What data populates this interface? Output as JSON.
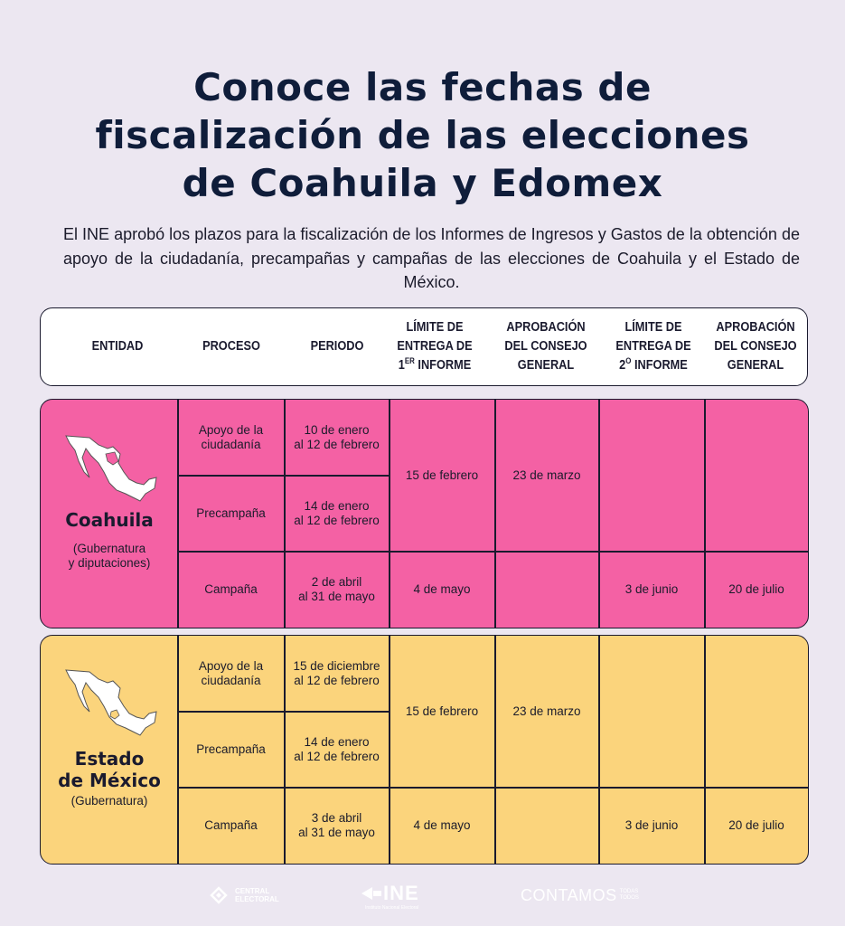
{
  "title": {
    "line1": "Conoce las fechas de",
    "line2": "fiscalización de las elecciones",
    "line3": "de Coahuila y Edomex"
  },
  "intro": "El INE aprobó los plazos para la fiscalización de los Informes de Ingresos y Gastos de la obtención de apoyo de la ciudadanía, precampañas y campañas de las elecciones de Coahuila y el Estado de México.",
  "headers": {
    "entidad": "ENTIDAD",
    "proceso": "PROCESO",
    "periodo": "PERIODO",
    "limite1_a": "LÍMITE DE",
    "limite1_b": "ENTREGA DE",
    "limite1_c_num": "1",
    "limite1_c_sup": "ER",
    "limite1_c_rest": " INFORME",
    "aprob1_a": "APROBACIÓN",
    "aprob1_b": "DEL CONSEJO",
    "aprob1_c": "GENERAL",
    "limite2_a": "LÍMITE DE",
    "limite2_b": "ENTREGA DE",
    "limite2_c_num": "2",
    "limite2_c_sup": "O",
    "limite2_c_rest": " INFORME",
    "aprob2_a": "APROBACIÓN",
    "aprob2_b": "DEL CONSEJO",
    "aprob2_c": "GENERAL"
  },
  "coahuila": {
    "name": "Coahuila",
    "sub_a": "(Gubernatura",
    "sub_b": "y diputaciones)",
    "color": "#f461a4",
    "rows": [
      {
        "proceso_a": "Apoyo de la",
        "proceso_b": "ciudadanía",
        "periodo_a": "10 de enero",
        "periodo_b": "al 12 de febrero"
      },
      {
        "proceso_a": "Precampaña",
        "proceso_b": "",
        "periodo_a": "14 de enero",
        "periodo_b": "al 12 de febrero"
      },
      {
        "proceso_a": "Campaña",
        "proceso_b": "",
        "periodo_a": "2 de abril",
        "periodo_b": "al 31 de mayo"
      }
    ],
    "limite1_top": "15 de febrero",
    "aprob1_top": "23 de marzo",
    "limite1_camp": "4 de mayo",
    "limite2_camp": "3 de junio",
    "aprob2_camp": "20 de julio"
  },
  "mexico": {
    "name_a": "Estado",
    "name_b": "de México",
    "sub_a": "(Gubernatura)",
    "color": "#fbd47c",
    "rows": [
      {
        "proceso_a": "Apoyo de la",
        "proceso_b": "ciudadanía",
        "periodo_a": "15 de diciembre",
        "periodo_b": "al 12 de febrero"
      },
      {
        "proceso_a": "Precampaña",
        "proceso_b": "",
        "periodo_a": "14 de enero",
        "periodo_b": "al 12 de febrero"
      },
      {
        "proceso_a": "Campaña",
        "proceso_b": "",
        "periodo_a": "3 de abril",
        "periodo_b": "al 31 de mayo"
      }
    ],
    "limite1_top": "15 de febrero",
    "aprob1_top": "23 de marzo",
    "limite1_camp": "4 de mayo",
    "limite2_camp": "3 de junio",
    "aprob2_camp": "20 de julio"
  },
  "footer": {
    "central_a": "CENTRAL",
    "central_b": "ELECTORAL",
    "ine": "INE",
    "ine_sub": "Instituto Nacional Electoral",
    "contamos": "CONTAMOS",
    "contamos_a": "TODAS",
    "contamos_b": "TODOS"
  }
}
